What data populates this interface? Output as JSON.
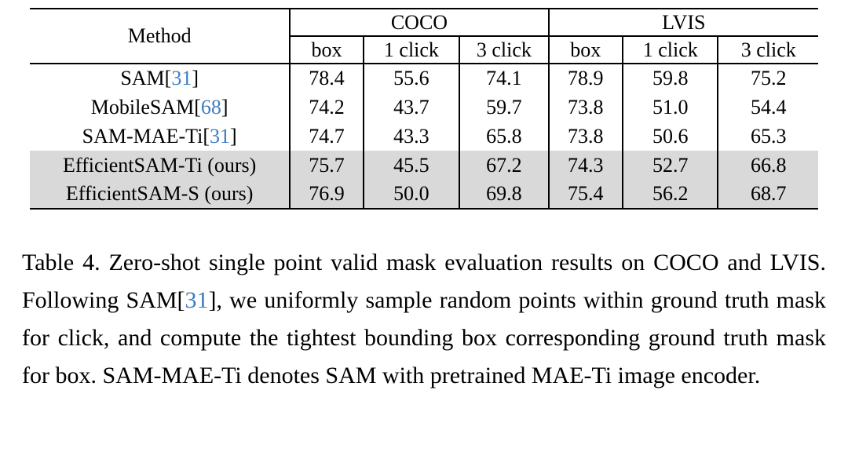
{
  "colors": {
    "citation": "#3d7dbf",
    "highlight_row": "#d9d9d9",
    "rule": "#000000"
  },
  "table": {
    "method_header": "Method",
    "groups": [
      {
        "label": "COCO",
        "subcols": [
          "box",
          "1 click",
          "3 click"
        ]
      },
      {
        "label": "LVIS",
        "subcols": [
          "box",
          "1 click",
          "3 click"
        ]
      }
    ],
    "rows": [
      {
        "name": "SAM",
        "cite": "31",
        "values": [
          "78.4",
          "55.6",
          "74.1",
          "78.9",
          "59.8",
          "75.2"
        ],
        "highlight": false
      },
      {
        "name": "MobileSAM",
        "cite": "68",
        "values": [
          "74.2",
          "43.7",
          "59.7",
          "73.8",
          "51.0",
          "54.4"
        ],
        "highlight": false
      },
      {
        "name": "SAM-MAE-Ti",
        "cite": "31",
        "values": [
          "74.7",
          "43.3",
          "65.8",
          "73.8",
          "50.6",
          "65.3"
        ],
        "highlight": false
      },
      {
        "name": "EfficientSAM-Ti (ours)",
        "cite": "",
        "values": [
          "75.7",
          "45.5",
          "67.2",
          "74.3",
          "52.7",
          "66.8"
        ],
        "highlight": true
      },
      {
        "name": "EfficientSAM-S (ours)",
        "cite": "",
        "values": [
          "76.9",
          "50.0",
          "69.8",
          "75.4",
          "56.2",
          "68.7"
        ],
        "highlight": true
      }
    ]
  },
  "caption": {
    "part1": "Table 4. Zero-shot single point valid mask evaluation results on COCO and LVIS. Following SAM[",
    "cite": "31",
    "part2": "], we uniformly sample random points within ground truth mask for click, and compute the tightest bounding box corresponding ground truth mask for box. SAM-MAE-Ti denotes SAM with pretrained MAE-Ti image encoder."
  }
}
